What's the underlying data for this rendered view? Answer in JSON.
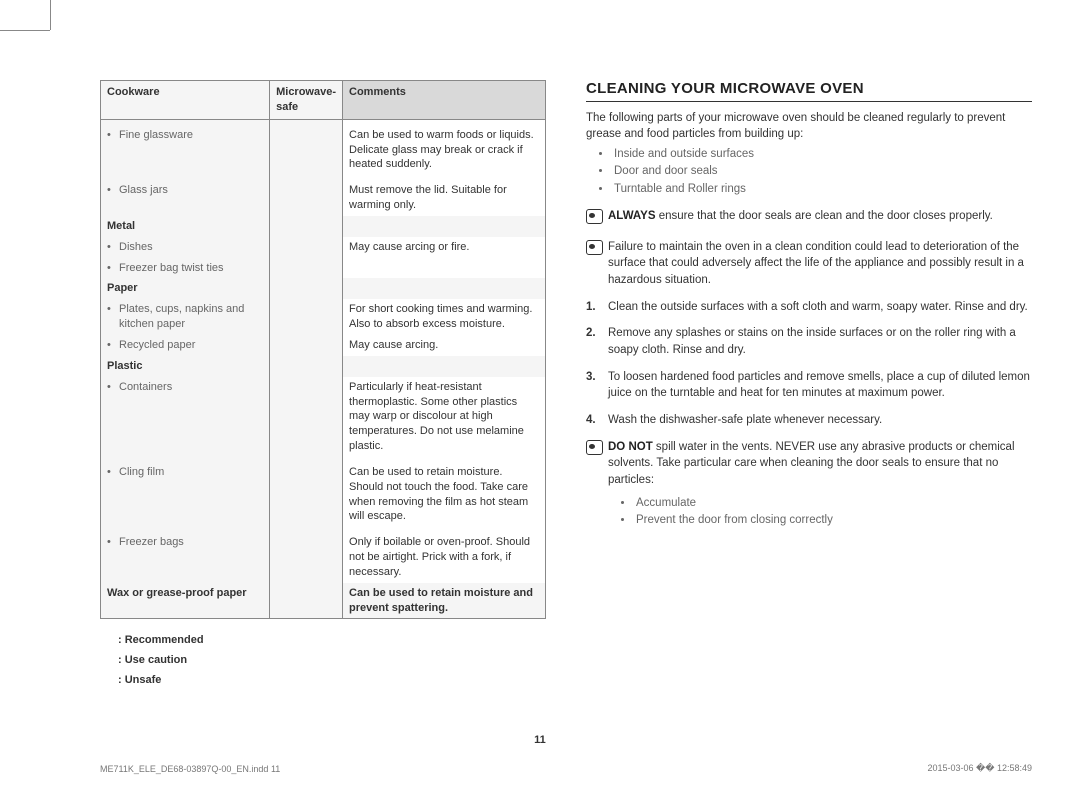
{
  "table": {
    "headers": [
      "Cookware",
      "Microwave-safe",
      "Comments"
    ],
    "rows": [
      {
        "item": "Fine glassware",
        "comment": "Can be used to warm foods or liquids. Delicate glass may break or crack if heated suddenly.",
        "sep": true
      },
      {
        "item": "Glass jars",
        "comment": "Must remove the lid. Suitable for warming only.",
        "sep": true
      },
      {
        "cat": "Metal"
      },
      {
        "item": "Dishes",
        "comment": "May cause arcing or ﬁre."
      },
      {
        "item": "Freezer bag twist ties",
        "comment": ""
      },
      {
        "cat": "Paper"
      },
      {
        "item": "Plates, cups, napkins and kitchen paper",
        "comment": "For short cooking times and warming. Also to absorb excess moisture."
      },
      {
        "item": "Recycled paper",
        "comment": "May cause arcing."
      },
      {
        "cat": "Plastic"
      },
      {
        "item": "Containers",
        "comment": "Particularly if heat-resistant thermoplastic. Some other plastics may warp or discolour at high temperatures. Do not use melamine plastic."
      },
      {
        "item": "Cling film",
        "comment": "Can be used to retain moisture. Should not touch the food. Take care when removing the ﬁlm as hot steam will escape.",
        "sep": true
      },
      {
        "item": "Freezer bags",
        "comment": "Only if boilable or oven-proof. Should not be airtight. Prick with a fork, if necessary.",
        "sep": true
      },
      {
        "cat": "Wax or grease-proof paper",
        "comment": "Can be used to retain moisture and prevent spattering.",
        "last": true
      }
    ],
    "legend": [
      ": Recommended",
      ": Use caution",
      ": Unsafe"
    ]
  },
  "right": {
    "title": "CLEANING YOUR MICROWAVE OVEN",
    "intro": "The following parts of your microwave oven should be cleaned regularly to prevent grease and food particles from building up:",
    "parts": [
      "Inside and outside surfaces",
      "Door and door seals",
      "Turntable and Roller rings"
    ],
    "warn1_bold": "ALWAYS",
    "warn1": " ensure that the door seals are clean and the door closes properly.",
    "warn2": "Failure to maintain the oven in a clean condition could lead to deterioration of the surface that could adversely affect the life of the appliance and possibly result in a hazardous situation.",
    "steps": [
      "Clean the outside surfaces with a soft cloth and warm, soapy water. Rinse and dry.",
      "Remove any splashes or stains on the inside surfaces or on the roller ring with a soapy cloth. Rinse and dry.",
      "To loosen hardened food particles and remove smells, place a cup of diluted lemon juice on the turntable and heat for ten minutes at maximum power.",
      "Wash the dishwasher-safe plate whenever necessary."
    ],
    "warn3_bold": "DO NOT",
    "warn3": " spill water in the vents. NEVER use any abrasive products or chemical solvents. Take particular care when cleaning the door seals to ensure that no particles:",
    "warn3_list": [
      "Accumulate",
      "Prevent the door from closing correctly"
    ]
  },
  "pageNum": "11",
  "footer": {
    "left": "ME711K_ELE_DE68-03897Q-00_EN.indd   11",
    "right": "2015-03-06   �� 12:58:49"
  }
}
